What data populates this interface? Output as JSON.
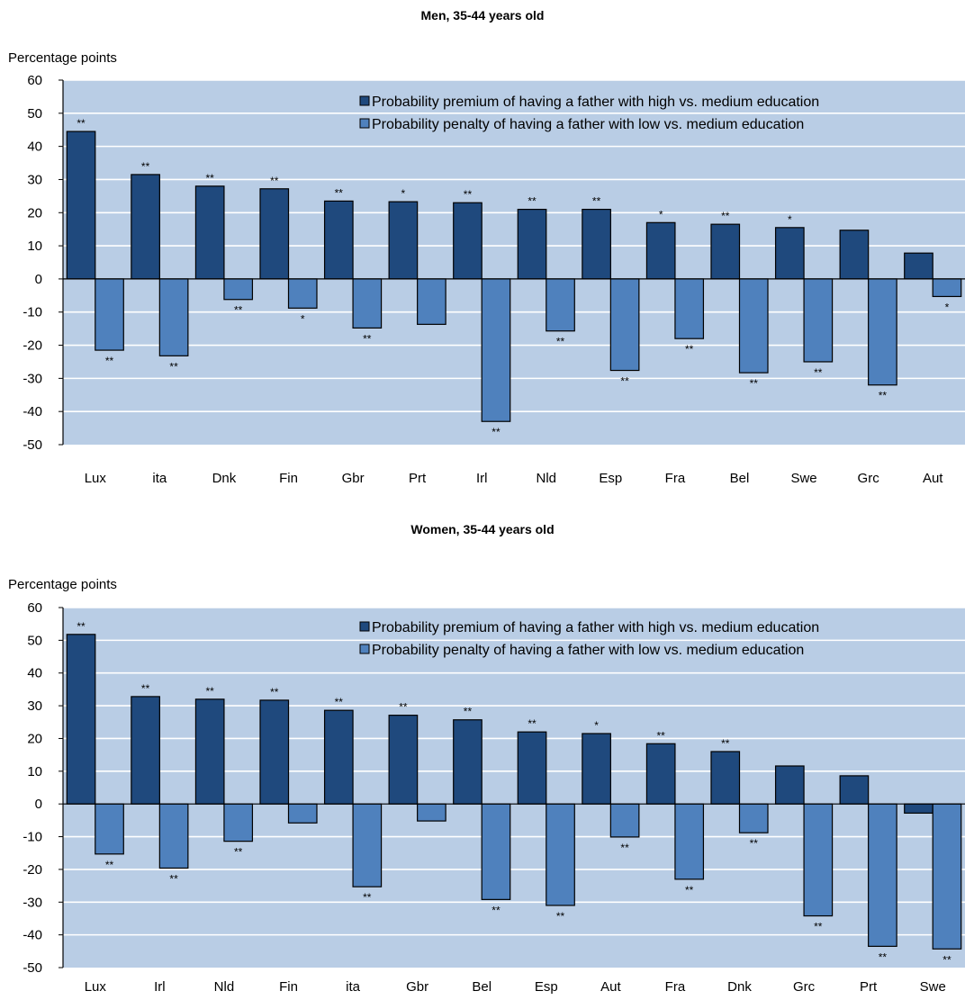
{
  "chart_data": [
    {
      "type": "bar",
      "title": "Men, 35-44 years old",
      "ylabel": "Percentage points",
      "ylim": [
        -50,
        60
      ],
      "yticks": [
        60,
        50,
        40,
        30,
        20,
        10,
        0,
        -10,
        -20,
        -30,
        -40,
        -50
      ],
      "grid": true,
      "legend_position": "top-right",
      "categories": [
        "Lux",
        "ita",
        "Dnk",
        "Fin",
        "Gbr",
        "Prt",
        "Irl",
        "Nld",
        "Esp",
        "Fra",
        "Bel",
        "Swe",
        "Grc",
        "Aut"
      ],
      "series": [
        {
          "name": "Probability premium of having a father with high vs. medium education",
          "color": "#1f497d",
          "values": [
            44.5,
            31.5,
            28,
            27.2,
            23.5,
            23.3,
            23,
            21,
            21,
            17,
            16.5,
            15.5,
            14.7,
            7.8
          ],
          "significance": [
            "**",
            "**",
            "**",
            "**",
            "**",
            "*",
            "**",
            "**",
            "**",
            "*",
            "**",
            "*",
            "",
            ""
          ]
        },
        {
          "name": "Probability penalty of having a father with low vs. medium education",
          "color": "#4f81bd",
          "values": [
            -21.5,
            -23.2,
            -6.2,
            -8.8,
            -14.8,
            -13.7,
            -43,
            -15.7,
            -27.6,
            -18,
            -28.3,
            -25,
            -32,
            -5.3
          ],
          "significance": [
            "**",
            "**",
            "**",
            "*",
            "**",
            "",
            "**",
            "**",
            "**",
            "**",
            "**",
            "**",
            "**",
            "*"
          ]
        }
      ]
    },
    {
      "type": "bar",
      "title": "Women, 35-44 years old",
      "ylabel": "Percentage points",
      "ylim": [
        -50,
        60
      ],
      "yticks": [
        60,
        50,
        40,
        30,
        20,
        10,
        0,
        -10,
        -20,
        -30,
        -40,
        -50
      ],
      "grid": true,
      "legend_position": "top-right",
      "categories": [
        "Lux",
        "Irl",
        "Nld",
        "Fin",
        "ita",
        "Gbr",
        "Bel",
        "Esp",
        "Aut",
        "Fra",
        "Dnk",
        "Grc",
        "Prt",
        "Swe"
      ],
      "series": [
        {
          "name": "Probability premium of having a father with high vs. medium education",
          "color": "#1f497d",
          "values": [
            51.8,
            32.8,
            32,
            31.7,
            28.6,
            27.1,
            25.7,
            22,
            21.5,
            18.4,
            16,
            11.6,
            8.6,
            -2.8
          ],
          "significance": [
            "**",
            "**",
            "**",
            "**",
            "**",
            "**",
            "**",
            "**",
            "*",
            "**",
            "**",
            "",
            "",
            ""
          ]
        },
        {
          "name": "Probability penalty of having a father with low vs. medium education",
          "color": "#4f81bd",
          "values": [
            -15.3,
            -19.6,
            -11.4,
            -5.8,
            -25.3,
            -5.2,
            -29.2,
            -31,
            -10.1,
            -23,
            -8.8,
            -34.2,
            -43.5,
            -44.3
          ],
          "significance": [
            "**",
            "**",
            "**",
            "",
            "**",
            "",
            "**",
            "**",
            "**",
            "**",
            "**",
            "**",
            "**",
            "**"
          ]
        }
      ]
    }
  ]
}
